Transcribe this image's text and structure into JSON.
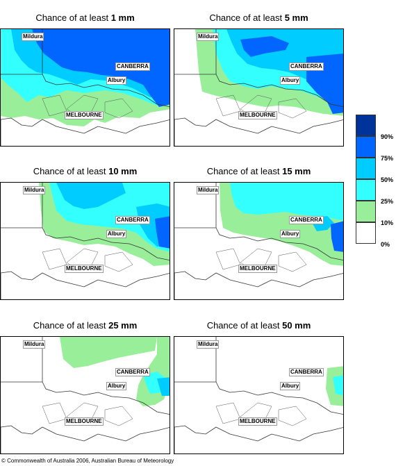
{
  "colors": {
    "0": "#ffffff",
    "10": "#99ee99",
    "25": "#33ffff",
    "50": "#00ccff",
    "75": "#0066ff",
    "90": "#003399"
  },
  "panels": [
    {
      "prefix": "Chance of at least ",
      "amount": "1 mm"
    },
    {
      "prefix": "Chance of at least ",
      "amount": "5 mm"
    },
    {
      "prefix": "Chance of at least ",
      "amount": "10 mm"
    },
    {
      "prefix": "Chance of at least ",
      "amount": "15 mm"
    },
    {
      "prefix": "Chance of at least ",
      "amount": "25 mm"
    },
    {
      "prefix": "Chance of at least ",
      "amount": "50 mm"
    }
  ],
  "places": {
    "mildura": "Mildura",
    "canberra": "CANBERRA",
    "albury": "Albury",
    "melbourne": "MELBOURNE"
  },
  "legend": [
    {
      "label": "90%",
      "color": "#003399"
    },
    {
      "label": "75%",
      "color": "#0066ff"
    },
    {
      "label": "50%",
      "color": "#00ccff"
    },
    {
      "label": "25%",
      "color": "#33ffff"
    },
    {
      "label": "10%",
      "color": "#99ee99"
    },
    {
      "label": "0%",
      "color": "#ffffff"
    }
  ],
  "copyright": "© Commonwealth of Australia 2006, Australian Bureau of Meteorology"
}
